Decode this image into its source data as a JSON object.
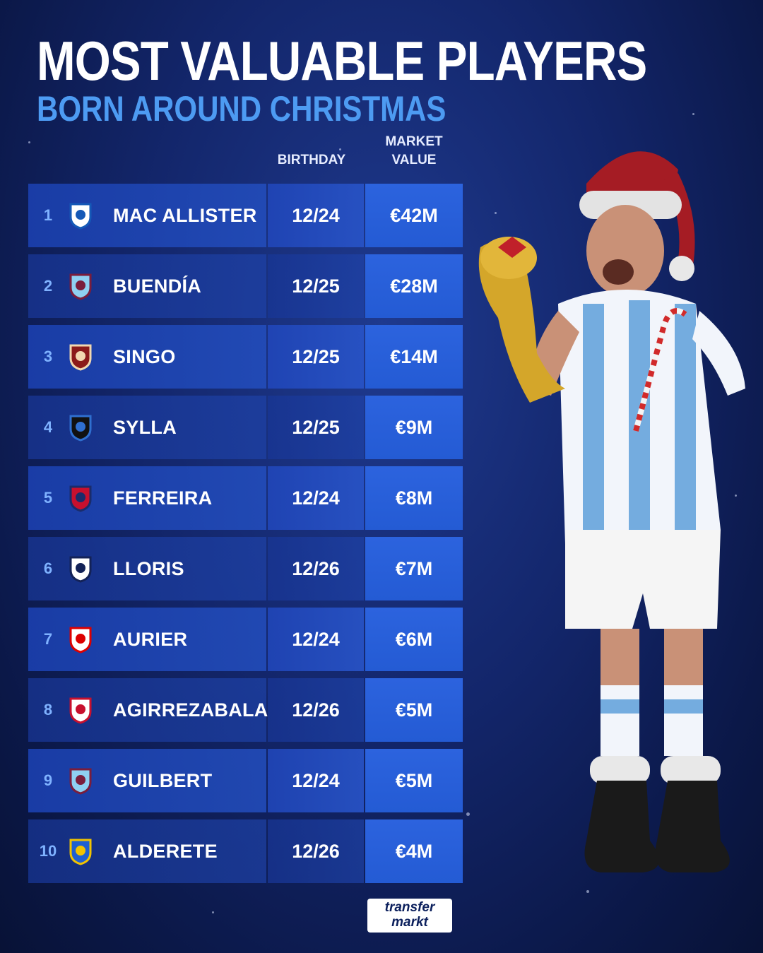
{
  "header": {
    "title": "MOST VALUABLE PLAYERS",
    "subtitle": "BORN AROUND CHRISTMAS"
  },
  "columns": {
    "birthday": "BIRTHDAY",
    "market_value_line1": "MARKET",
    "market_value_line2": "VALUE"
  },
  "rows": [
    {
      "rank": "1",
      "club_icon": "brighton-crest-icon",
      "name": "MAC ALLISTER",
      "birthday": "12/24",
      "value": "€42M"
    },
    {
      "rank": "2",
      "club_icon": "aston-villa-crest-icon",
      "name": "BUENDÍA",
      "birthday": "12/25",
      "value": "€28M"
    },
    {
      "rank": "3",
      "club_icon": "torino-crest-icon",
      "name": "SINGO",
      "birthday": "12/25",
      "value": "€14M"
    },
    {
      "rank": "4",
      "club_icon": "club-brugge-crest-icon",
      "name": "SYLLA",
      "birthday": "12/25",
      "value": "€9M"
    },
    {
      "rank": "5",
      "club_icon": "fc-dallas-crest-icon",
      "name": "FERREIRA",
      "birthday": "12/24",
      "value": "€8M"
    },
    {
      "rank": "6",
      "club_icon": "tottenham-crest-icon",
      "name": "LLORIS",
      "birthday": "12/26",
      "value": "€7M"
    },
    {
      "rank": "7",
      "club_icon": "nottingham-forest-crest-icon",
      "name": "AURIER",
      "birthday": "12/24",
      "value": "€6M"
    },
    {
      "rank": "8",
      "club_icon": "athletic-club-crest-icon",
      "name": "AGIRREZABALA",
      "birthday": "12/26",
      "value": "€5M"
    },
    {
      "rank": "9",
      "club_icon": "aston-villa-crest-icon",
      "name": "GUILBERT",
      "birthday": "12/24",
      "value": "€5M"
    },
    {
      "rank": "10",
      "club_icon": "getafe-crest-icon",
      "name": "ALDERETE",
      "birthday": "12/26",
      "value": "€4M"
    }
  ],
  "brand": {
    "logo_line1": "transfer",
    "logo_line2": "markt"
  },
  "colors": {
    "background": "#13266b",
    "accent_blue": "#4d9bf2",
    "value_cell": "#2c63de"
  }
}
